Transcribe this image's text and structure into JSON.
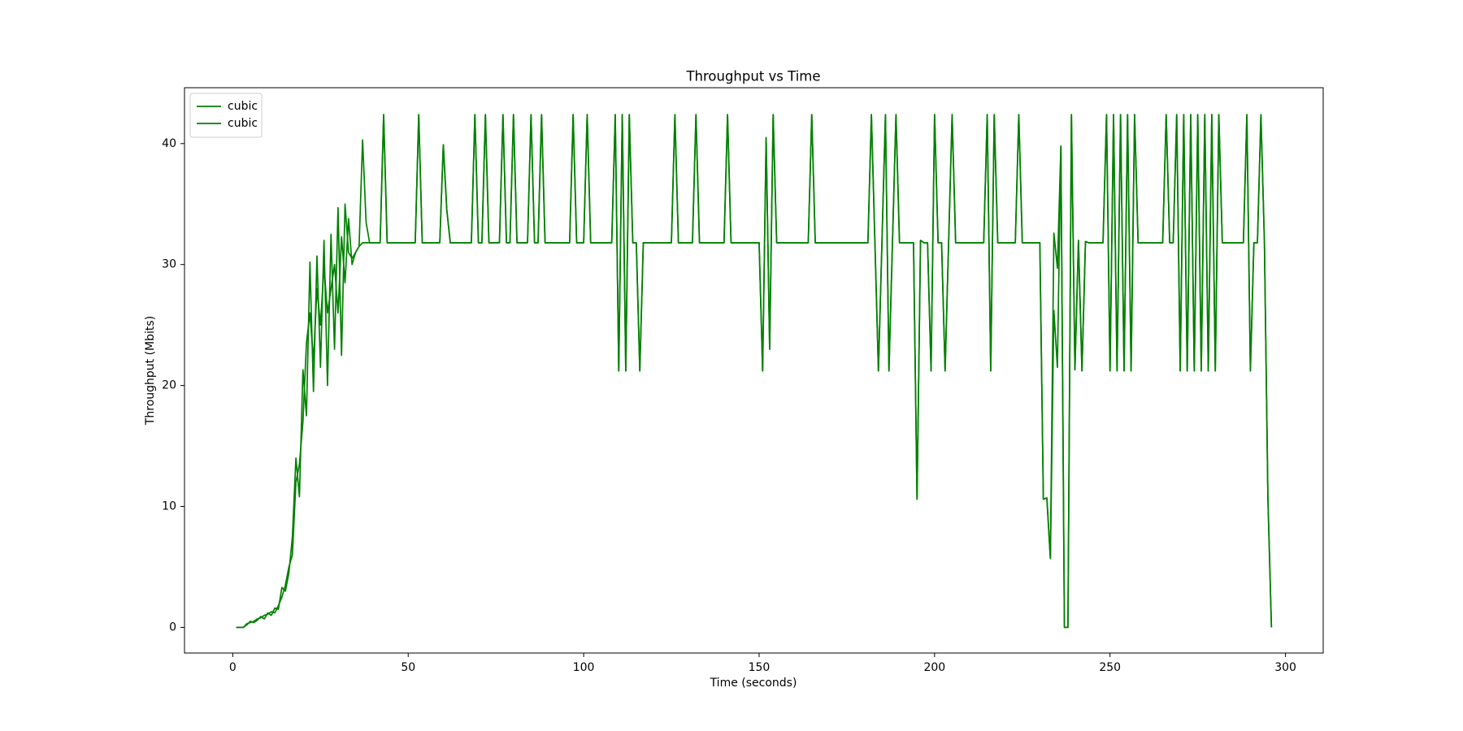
{
  "chart_data": {
    "type": "line",
    "title": "Throughput vs Time",
    "xlabel": "Time (seconds)",
    "ylabel": "Throughput (Mbits)",
    "xlim": [
      -13.75,
      310.75
    ],
    "ylim": [
      -2.12,
      44.62
    ],
    "xticks": [
      0,
      50,
      100,
      150,
      200,
      250,
      300
    ],
    "yticks": [
      0,
      10,
      20,
      30,
      40
    ],
    "grid": false,
    "legend": "upper left",
    "x": [
      1,
      2,
      3,
      4,
      5,
      6,
      7,
      8,
      9,
      10,
      11,
      12,
      13,
      14,
      15,
      16,
      17,
      18,
      19,
      20,
      21,
      22,
      23,
      24,
      25,
      26,
      27,
      28,
      29,
      30,
      31,
      32,
      33,
      34,
      35,
      36,
      37,
      38,
      39,
      40,
      41,
      42,
      43,
      44,
      45,
      46,
      47,
      48,
      49,
      50,
      51,
      52,
      53,
      54,
      55,
      56,
      57,
      58,
      59,
      60,
      61,
      62,
      63,
      64,
      65,
      66,
      67,
      68,
      69,
      70,
      71,
      72,
      73,
      74,
      75,
      76,
      77,
      78,
      79,
      80,
      81,
      82,
      83,
      84,
      85,
      86,
      87,
      88,
      89,
      90,
      91,
      92,
      93,
      94,
      95,
      96,
      97,
      98,
      99,
      100,
      101,
      102,
      103,
      104,
      105,
      106,
      107,
      108,
      109,
      110,
      111,
      112,
      113,
      114,
      115,
      116,
      117,
      118,
      119,
      120,
      121,
      122,
      123,
      124,
      125,
      126,
      127,
      128,
      129,
      130,
      131,
      132,
      133,
      134,
      135,
      136,
      137,
      138,
      139,
      140,
      141,
      142,
      143,
      144,
      145,
      146,
      147,
      148,
      149,
      150,
      151,
      152,
      153,
      154,
      155,
      156,
      157,
      158,
      159,
      160,
      161,
      162,
      163,
      164,
      165,
      166,
      167,
      168,
      169,
      170,
      171,
      172,
      173,
      174,
      175,
      176,
      177,
      178,
      179,
      180,
      181,
      182,
      183,
      184,
      185,
      186,
      187,
      188,
      189,
      190,
      191,
      192,
      193,
      194,
      195,
      196,
      197,
      198,
      199,
      200,
      201,
      202,
      203,
      204,
      205,
      206,
      207,
      208,
      209,
      210,
      211,
      212,
      213,
      214,
      215,
      216,
      217,
      218,
      219,
      220,
      221,
      222,
      223,
      224,
      225,
      226,
      227,
      228,
      229,
      230,
      231,
      232,
      233,
      234,
      235,
      236,
      237,
      238,
      239,
      240,
      241,
      242,
      243,
      244,
      245,
      246,
      247,
      248,
      249,
      250,
      251,
      252,
      253,
      254,
      255,
      256,
      257,
      258,
      259,
      260,
      261,
      262,
      263,
      264,
      265,
      266,
      267,
      268,
      269,
      270,
      271,
      272,
      273,
      274,
      275,
      276,
      277,
      278,
      279,
      280,
      281,
      282,
      283,
      284,
      285,
      286,
      287,
      288,
      289,
      290,
      291,
      292,
      293,
      294,
      295,
      296
    ],
    "series": [
      {
        "name": "cubic",
        "color": "#008000",
        "values": [
          0,
          0,
          0,
          0.2,
          0.5,
          0.4,
          0.6,
          0.9,
          0.7,
          1.2,
          1.0,
          1.6,
          1.5,
          3.3,
          3.0,
          4.5,
          7.5,
          14.0,
          10.8,
          21.3,
          17.5,
          30.2,
          19.5,
          30.7,
          21.5,
          32.0,
          20.0,
          32.5,
          23.0,
          34.7,
          22.5,
          35.0,
          31.0,
          30.5,
          31.0,
          31.5,
          40.3,
          33.5,
          31.8,
          31.8,
          31.8,
          31.8,
          42.4,
          31.8,
          31.8,
          31.8,
          31.8,
          31.8,
          31.8,
          31.8,
          31.8,
          31.8,
          42.4,
          31.8,
          31.8,
          31.8,
          31.8,
          31.8,
          31.8,
          39.9,
          34.5,
          31.8,
          31.8,
          31.8,
          31.8,
          31.8,
          31.8,
          31.8,
          42.4,
          31.8,
          31.8,
          42.4,
          31.8,
          31.8,
          31.8,
          31.8,
          42.4,
          31.8,
          31.8,
          42.4,
          31.8,
          31.8,
          31.8,
          31.8,
          42.4,
          31.8,
          31.8,
          42.4,
          31.8,
          31.8,
          31.8,
          31.8,
          31.8,
          31.8,
          31.8,
          31.8,
          42.4,
          31.8,
          31.8,
          31.8,
          42.4,
          31.8,
          31.8,
          31.8,
          31.8,
          31.8,
          31.8,
          31.8,
          42.4,
          21.2,
          42.4,
          21.2,
          42.4,
          31.8,
          31.8,
          21.2,
          31.8,
          31.8,
          31.8,
          31.8,
          31.8,
          31.8,
          31.8,
          31.8,
          31.8,
          42.4,
          31.8,
          31.8,
          31.8,
          31.8,
          31.8,
          42.4,
          31.8,
          31.8,
          31.8,
          31.8,
          31.8,
          31.8,
          31.8,
          31.8,
          42.4,
          31.8,
          31.8,
          31.8,
          31.8,
          31.8,
          31.8,
          31.8,
          31.8,
          31.8,
          21.2,
          40.5,
          23.0,
          42.4,
          31.8,
          31.8,
          31.8,
          31.8,
          31.8,
          31.8,
          31.8,
          31.8,
          31.8,
          31.8,
          42.4,
          31.8,
          31.8,
          31.8,
          31.8,
          31.8,
          31.8,
          31.8,
          31.8,
          31.8,
          31.8,
          31.8,
          31.8,
          31.8,
          31.8,
          31.8,
          31.8,
          42.4,
          31.8,
          21.2,
          31.8,
          42.4,
          21.2,
          31.8,
          42.4,
          31.8,
          31.8,
          31.8,
          31.8,
          31.8,
          10.6,
          32.0,
          31.8,
          31.8,
          21.2,
          42.4,
          31.8,
          31.8,
          21.2,
          31.8,
          42.4,
          31.8,
          31.8,
          31.8,
          31.8,
          31.8,
          31.8,
          31.8,
          31.8,
          31.8,
          42.4,
          21.2,
          42.4,
          31.8,
          31.8,
          31.8,
          31.8,
          31.8,
          31.8,
          42.4,
          31.8,
          31.8,
          31.8,
          31.8,
          31.8,
          31.8,
          10.6,
          10.7,
          5.7,
          32.6,
          29.7,
          39.8,
          0,
          0,
          42.4,
          21.3,
          32.0,
          21.2,
          31.9,
          31.8,
          31.8,
          31.8,
          31.8,
          31.8,
          42.4,
          21.2,
          42.4,
          21.2,
          42.4,
          21.2,
          42.4,
          21.2,
          42.4,
          31.8,
          31.8,
          31.8,
          31.8,
          31.8,
          31.8,
          31.8,
          31.8,
          42.4,
          31.8,
          31.8,
          42.4,
          21.2,
          42.4,
          21.2,
          42.4,
          21.2,
          42.4,
          21.2,
          42.4,
          21.2,
          42.4,
          21.2,
          42.4,
          31.8,
          31.8,
          31.8,
          31.8,
          31.8,
          31.8,
          31.8,
          42.4,
          21.2,
          31.8,
          31.8,
          42.4,
          31.8,
          10.6,
          0
        ]
      },
      {
        "name": "cubic",
        "color": "#008000",
        "values": [
          0,
          0,
          0,
          0.3,
          0.4,
          0.5,
          0.7,
          0.8,
          1.0,
          1.1,
          1.3,
          1.2,
          1.8,
          2.5,
          3.5,
          5.0,
          6.0,
          12.0,
          13.5,
          17.0,
          23.5,
          26.0,
          22.0,
          28.0,
          25.0,
          29.8,
          26.0,
          28.0,
          30.0,
          26.0,
          32.3,
          28.5,
          33.8,
          30.0,
          31.0,
          31.5,
          31.8,
          31.8,
          31.8,
          31.8,
          31.8,
          31.8,
          42.4,
          31.8,
          31.8,
          31.8,
          31.8,
          31.8,
          31.8,
          31.8,
          31.8,
          31.8,
          42.4,
          31.8,
          31.8,
          31.8,
          31.8,
          31.8,
          31.8,
          39.9,
          34.5,
          31.8,
          31.8,
          31.8,
          31.8,
          31.8,
          31.8,
          31.8,
          42.4,
          31.8,
          31.8,
          42.4,
          31.8,
          31.8,
          31.8,
          31.8,
          42.4,
          31.8,
          31.8,
          42.4,
          31.8,
          31.8,
          31.8,
          31.8,
          42.4,
          31.8,
          31.8,
          42.4,
          31.8,
          31.8,
          31.8,
          31.8,
          31.8,
          31.8,
          31.8,
          31.8,
          42.4,
          31.8,
          31.8,
          31.8,
          42.4,
          31.8,
          31.8,
          31.8,
          31.8,
          31.8,
          31.8,
          31.8,
          42.4,
          21.2,
          42.4,
          21.2,
          42.4,
          31.8,
          31.8,
          21.2,
          31.8,
          31.8,
          31.8,
          31.8,
          31.8,
          31.8,
          31.8,
          31.8,
          31.8,
          42.4,
          31.8,
          31.8,
          31.8,
          31.8,
          31.8,
          42.4,
          31.8,
          31.8,
          31.8,
          31.8,
          31.8,
          31.8,
          31.8,
          31.8,
          42.4,
          31.8,
          31.8,
          31.8,
          31.8,
          31.8,
          31.8,
          31.8,
          31.8,
          31.8,
          21.2,
          40.5,
          23.0,
          42.4,
          31.8,
          31.8,
          31.8,
          31.8,
          31.8,
          31.8,
          31.8,
          31.8,
          31.8,
          31.8,
          42.4,
          31.8,
          31.8,
          31.8,
          31.8,
          31.8,
          31.8,
          31.8,
          31.8,
          31.8,
          31.8,
          31.8,
          31.8,
          31.8,
          31.8,
          31.8,
          31.8,
          42.4,
          31.8,
          21.2,
          31.8,
          42.4,
          21.2,
          31.8,
          42.4,
          31.8,
          31.8,
          31.8,
          31.8,
          31.8,
          10.6,
          32.0,
          31.8,
          31.8,
          21.2,
          42.4,
          31.8,
          31.8,
          21.2,
          31.8,
          42.4,
          31.8,
          31.8,
          31.8,
          31.8,
          31.8,
          31.8,
          31.8,
          31.8,
          31.8,
          42.4,
          21.2,
          42.4,
          31.8,
          31.8,
          31.8,
          31.8,
          31.8,
          31.8,
          42.4,
          31.8,
          31.8,
          31.8,
          31.8,
          31.8,
          31.8,
          10.6,
          10.7,
          5.7,
          26.2,
          21.5,
          39.8,
          0,
          0,
          42.4,
          21.3,
          32.0,
          21.2,
          31.9,
          31.8,
          31.8,
          31.8,
          31.8,
          31.8,
          42.4,
          21.2,
          42.4,
          21.2,
          42.4,
          21.2,
          42.4,
          21.2,
          42.4,
          31.8,
          31.8,
          31.8,
          31.8,
          31.8,
          31.8,
          31.8,
          31.8,
          42.4,
          31.8,
          31.8,
          42.4,
          21.2,
          42.4,
          21.2,
          42.4,
          21.2,
          42.4,
          21.2,
          42.4,
          21.2,
          42.4,
          21.2,
          42.4,
          31.8,
          31.8,
          31.8,
          31.8,
          31.8,
          31.8,
          31.8,
          42.4,
          21.2,
          31.8,
          31.8,
          42.4,
          31.8,
          10.6,
          0
        ]
      }
    ]
  }
}
